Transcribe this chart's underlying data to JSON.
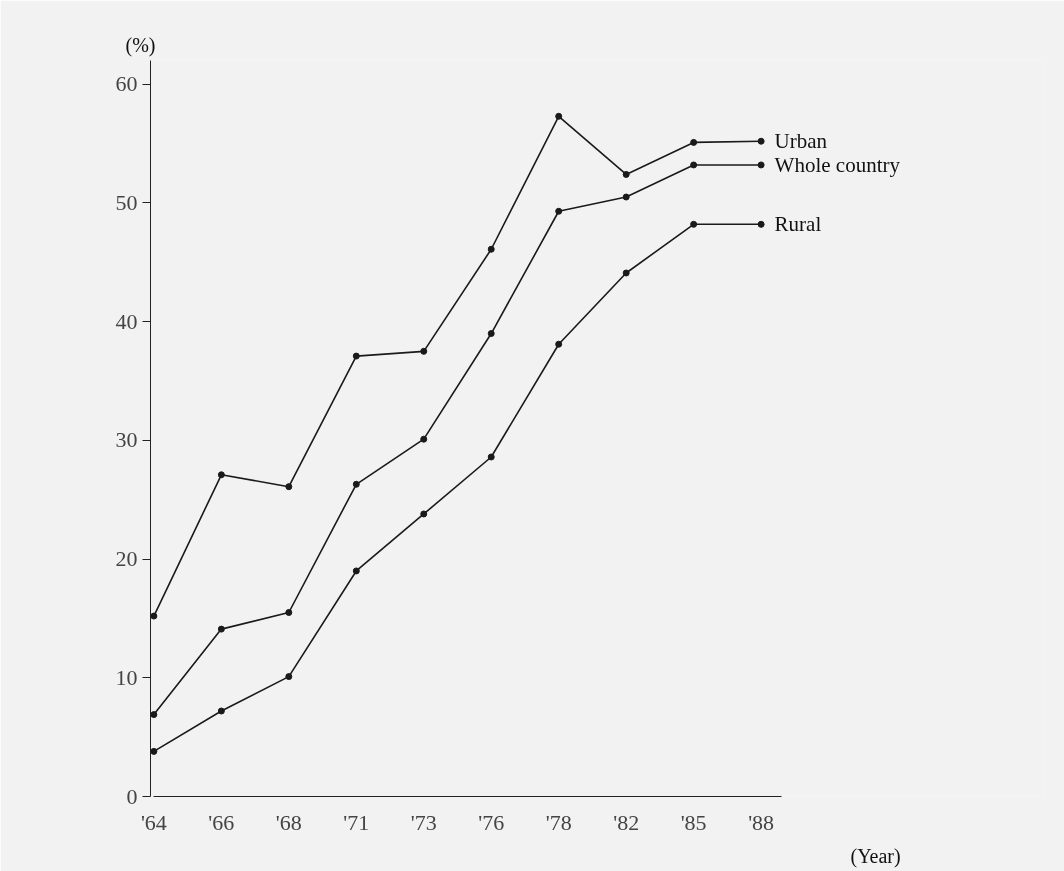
{
  "chart_data": {
    "type": "line",
    "xlabel": "(Year)",
    "ylabel": "(%)",
    "categories": [
      "'64",
      "'66",
      "'68",
      "'71",
      "'73",
      "'76",
      "'78",
      "'82",
      "'85",
      "'88"
    ],
    "ylim": [
      0,
      62
    ],
    "yticks": [
      0,
      10,
      20,
      30,
      40,
      50,
      60
    ],
    "grid": false,
    "marker": "circle",
    "line_style": "solid",
    "series": [
      {
        "name": "Urban",
        "color": "#1a1a1a",
        "values": [
          15.2,
          27.1,
          26.1,
          37.1,
          37.5,
          46.1,
          57.3,
          52.4,
          55.1,
          55.2
        ]
      },
      {
        "name": "Whole country",
        "color": "#1a1a1a",
        "values": [
          6.9,
          14.1,
          15.5,
          26.3,
          30.1,
          39.0,
          49.3,
          50.5,
          53.2,
          53.2
        ]
      },
      {
        "name": "Rural",
        "color": "#1a1a1a",
        "values": [
          3.8,
          7.2,
          10.1,
          19.0,
          23.8,
          28.6,
          38.1,
          44.1,
          48.2,
          48.2
        ]
      }
    ]
  }
}
